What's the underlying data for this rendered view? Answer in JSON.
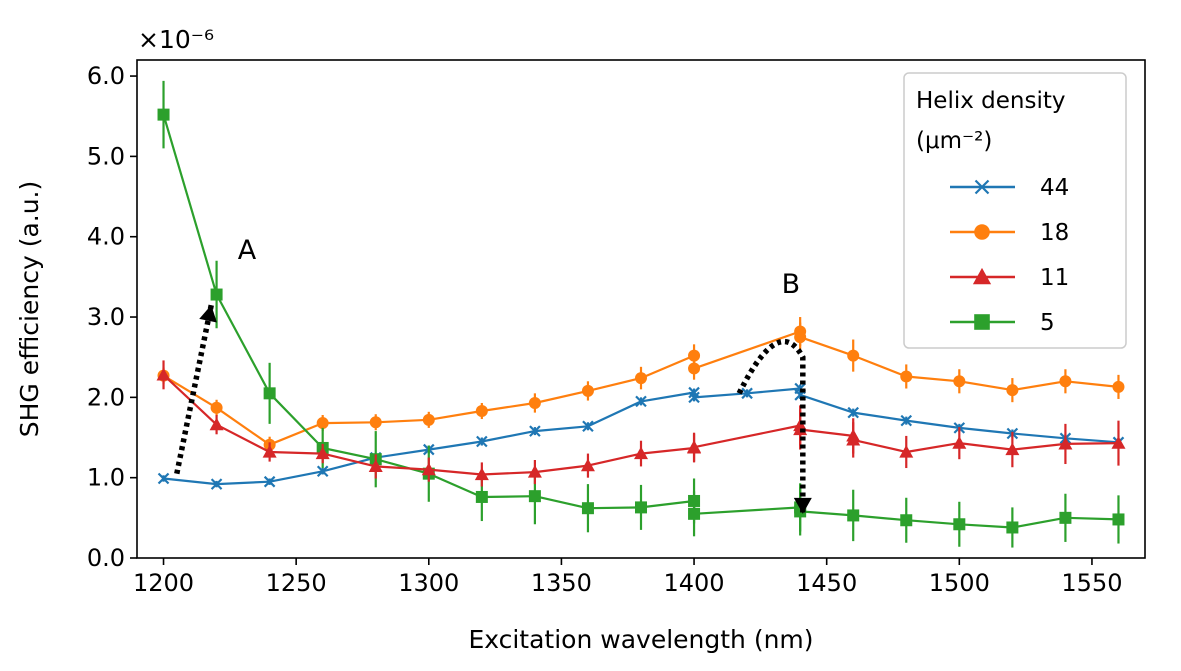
{
  "chart_data": {
    "type": "line",
    "xlabel": "Excitation wavelength (nm)",
    "ylabel": "SHG efficiency (a.u.)",
    "y_multiplier": "×10⁻⁶",
    "xlim": [
      1190,
      1570
    ],
    "ylim": [
      0.0,
      6.2
    ],
    "xticks": [
      1200,
      1250,
      1300,
      1350,
      1400,
      1450,
      1500,
      1550
    ],
    "yticks": [
      0.0,
      1.0,
      2.0,
      3.0,
      4.0,
      5.0,
      6.0
    ],
    "ytick_labels": [
      "0.0",
      "1.0",
      "2.0",
      "3.0",
      "4.0",
      "5.0",
      "6.0"
    ],
    "grid": false,
    "legend": {
      "title_line1": "Helix density",
      "title_line2": "(μm⁻²)",
      "placement": "top-right"
    },
    "series": [
      {
        "name": "44",
        "color": "#1f77b4",
        "marker": "x",
        "x": [
          1200,
          1220,
          1240,
          1260,
          1280,
          1300,
          1320,
          1340,
          1360,
          1380,
          1400,
          1400,
          1420,
          1440,
          1440,
          1460,
          1480,
          1500,
          1520,
          1540,
          1560
        ],
        "y": [
          0.99,
          0.92,
          0.95,
          1.08,
          1.25,
          1.35,
          1.45,
          1.58,
          1.64,
          1.95,
          2.06,
          2.0,
          2.05,
          2.11,
          2.03,
          1.81,
          1.71,
          1.62,
          1.55,
          1.49,
          1.44
        ],
        "err": [
          0.04,
          0.04,
          0.04,
          0.04,
          0.04,
          0.05,
          0.05,
          0.05,
          0.05,
          0.05,
          0.05,
          0.05,
          0.05,
          0.05,
          0.05,
          0.05,
          0.05,
          0.05,
          0.05,
          0.05,
          0.05
        ]
      },
      {
        "name": "18",
        "color": "#ff7f0e",
        "marker": "o",
        "x": [
          1200,
          1220,
          1240,
          1260,
          1280,
          1300,
          1320,
          1340,
          1360,
          1380,
          1400,
          1400,
          1440,
          1440,
          1460,
          1480,
          1500,
          1520,
          1540,
          1560
        ],
        "y": [
          2.27,
          1.87,
          1.41,
          1.68,
          1.69,
          1.72,
          1.83,
          1.93,
          2.08,
          2.24,
          2.52,
          2.36,
          2.82,
          2.75,
          2.52,
          2.26,
          2.2,
          2.09,
          2.2,
          2.13
        ],
        "err": [
          0.1,
          0.1,
          0.1,
          0.1,
          0.1,
          0.1,
          0.1,
          0.12,
          0.12,
          0.14,
          0.14,
          0.14,
          0.18,
          0.18,
          0.2,
          0.15,
          0.15,
          0.15,
          0.15,
          0.15
        ]
      },
      {
        "name": "11",
        "color": "#d62728",
        "marker": "^",
        "x": [
          1200,
          1220,
          1240,
          1260,
          1280,
          1300,
          1320,
          1340,
          1360,
          1380,
          1400,
          1400,
          1440,
          1440,
          1460,
          1460,
          1480,
          1500,
          1520,
          1540,
          1560
        ],
        "y": [
          2.28,
          1.66,
          1.32,
          1.3,
          1.14,
          1.1,
          1.04,
          1.07,
          1.15,
          1.3,
          1.37,
          1.38,
          1.65,
          1.6,
          1.52,
          1.47,
          1.32,
          1.43,
          1.35,
          1.42,
          1.43
        ],
        "err": [
          0.18,
          0.12,
          0.12,
          0.12,
          0.15,
          0.15,
          0.15,
          0.15,
          0.15,
          0.16,
          0.18,
          0.18,
          0.25,
          0.25,
          0.22,
          0.22,
          0.2,
          0.2,
          0.22,
          0.25,
          0.28
        ]
      },
      {
        "name": "5",
        "color": "#2ca02c",
        "marker": "s",
        "x": [
          1200,
          1220,
          1240,
          1260,
          1280,
          1300,
          1320,
          1340,
          1360,
          1380,
          1400,
          1400,
          1440,
          1440,
          1460,
          1480,
          1500,
          1520,
          1540,
          1560
        ],
        "y": [
          5.52,
          3.28,
          2.05,
          1.37,
          1.23,
          1.05,
          0.76,
          0.77,
          0.62,
          0.63,
          0.71,
          0.55,
          0.63,
          0.58,
          0.53,
          0.47,
          0.42,
          0.38,
          0.5,
          0.48
        ],
        "err": [
          0.42,
          0.42,
          0.38,
          0.25,
          0.35,
          0.35,
          0.3,
          0.35,
          0.3,
          0.28,
          0.28,
          0.28,
          0.3,
          0.3,
          0.32,
          0.28,
          0.28,
          0.25,
          0.3,
          0.3
        ]
      }
    ],
    "annotations": [
      {
        "label": "A",
        "label_pos": [
          1228,
          3.72
        ],
        "arrow": [
          [
            1205,
            1.05
          ],
          [
            1218,
            3.15
          ]
        ]
      },
      {
        "label": "B",
        "label_pos": [
          1433,
          3.3
        ],
        "arrow": [
          [
            1417,
            2.05
          ],
          [
            1432,
            3.05
          ],
          [
            1441,
            2.5
          ],
          [
            1441,
            0.55
          ]
        ]
      }
    ]
  }
}
